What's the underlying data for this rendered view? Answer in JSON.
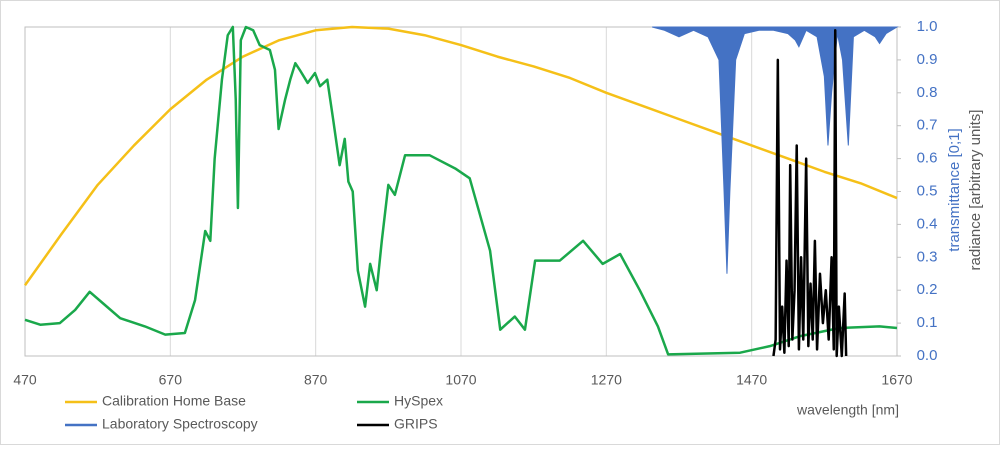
{
  "chart_data": {
    "type": "line",
    "xlabel": "wavelength [nm]",
    "ylabel": "transmittance [0;1]",
    "ylabel2": "radiance [arbitrary units]",
    "xlim": [
      470,
      1670
    ],
    "xticks": [
      470,
      670,
      870,
      1070,
      1270,
      1470,
      1670
    ],
    "ylim": [
      0,
      1
    ],
    "yticks": [
      {
        "value": 0,
        "label": "0.0"
      },
      0.1,
      0.2,
      0.3,
      0.4,
      0.5,
      0.6,
      0.7,
      0.8,
      0.9,
      {
        "value": 1,
        "label": "1.0"
      }
    ],
    "grid": true,
    "series": [
      {
        "name": "Calibration Home Base",
        "color": "#f5c018",
        "x": [
          470,
          520,
          570,
          620,
          670,
          720,
          770,
          820,
          870,
          920,
          970,
          1020,
          1070,
          1120,
          1170,
          1220,
          1270,
          1320,
          1370,
          1420,
          1470,
          1520,
          1570,
          1620,
          1670
        ],
        "values": [
          0.215,
          0.37,
          0.52,
          0.64,
          0.75,
          0.84,
          0.91,
          0.96,
          0.99,
          1.0,
          0.995,
          0.975,
          0.945,
          0.91,
          0.88,
          0.845,
          0.8,
          0.76,
          0.72,
          0.68,
          0.64,
          0.6,
          0.56,
          0.525,
          0.48
        ]
      },
      {
        "name": "HySpex",
        "color": "#1aa84b",
        "x": [
          470,
          491,
          518,
          539,
          559,
          580,
          601,
          635,
          663,
          690,
          704,
          718,
          725,
          731,
          741,
          749,
          756,
          760,
          763,
          767,
          774,
          784,
          793,
          807,
          814,
          819,
          828,
          835,
          842,
          848,
          859,
          869,
          876,
          886,
          894,
          903,
          910,
          915,
          921,
          928,
          938,
          945,
          954,
          961,
          970,
          979,
          993,
          1027,
          1062,
          1082,
          1110,
          1124,
          1144,
          1158,
          1172,
          1206,
          1238,
          1265,
          1289,
          1316,
          1341,
          1355,
          1454,
          1495,
          1536,
          1591,
          1646,
          1670
        ],
        "values": [
          0.11,
          0.095,
          0.1,
          0.14,
          0.195,
          0.155,
          0.115,
          0.09,
          0.065,
          0.07,
          0.17,
          0.38,
          0.35,
          0.6,
          0.84,
          0.975,
          1.0,
          0.78,
          0.45,
          0.96,
          1.0,
          0.99,
          0.945,
          0.93,
          0.87,
          0.69,
          0.78,
          0.84,
          0.89,
          0.87,
          0.83,
          0.86,
          0.82,
          0.84,
          0.72,
          0.58,
          0.66,
          0.53,
          0.5,
          0.26,
          0.15,
          0.28,
          0.2,
          0.35,
          0.52,
          0.49,
          0.61,
          0.61,
          0.57,
          0.54,
          0.32,
          0.08,
          0.12,
          0.08,
          0.29,
          0.29,
          0.35,
          0.28,
          0.31,
          0.2,
          0.09,
          0.005,
          0.01,
          0.03,
          0.06,
          0.085,
          0.09,
          0.085
        ]
      },
      {
        "name": "Laboratory Spectroscopy",
        "color": "#4472c4",
        "area": true,
        "x": [
          1333,
          1350,
          1370,
          1390,
          1410,
          1425,
          1432,
          1436,
          1440,
          1448,
          1460,
          1480,
          1500,
          1520,
          1530,
          1535,
          1545,
          1560,
          1570,
          1575,
          1580,
          1588,
          1595,
          1603,
          1610,
          1625,
          1640,
          1646,
          1655,
          1670
        ],
        "values": [
          1.0,
          0.99,
          0.97,
          0.99,
          0.97,
          0.9,
          0.5,
          0.25,
          0.5,
          0.9,
          0.98,
          0.99,
          0.99,
          0.98,
          0.96,
          0.94,
          0.99,
          0.97,
          0.85,
          0.64,
          0.8,
          0.98,
          0.9,
          0.64,
          0.97,
          0.99,
          0.97,
          0.95,
          0.98,
          1.0
        ]
      },
      {
        "name": "GRIPS",
        "color": "#000000",
        "x": [
          1500,
          1503,
          1506,
          1509,
          1512,
          1515,
          1518,
          1521,
          1523,
          1526,
          1529,
          1532,
          1535,
          1538,
          1541,
          1545,
          1548,
          1551,
          1554,
          1557,
          1560,
          1564,
          1568,
          1572,
          1576,
          1580,
          1583,
          1585,
          1587,
          1590,
          1594,
          1598,
          1600
        ],
        "values": [
          0.0,
          0.05,
          0.9,
          0.02,
          0.15,
          0.01,
          0.29,
          0.03,
          0.58,
          0.05,
          0.2,
          0.64,
          0.02,
          0.3,
          0.05,
          0.6,
          0.03,
          0.22,
          0.05,
          0.35,
          0.02,
          0.25,
          0.1,
          0.2,
          0.05,
          0.3,
          0.02,
          0.99,
          0.0,
          0.15,
          0.0,
          0.19,
          0.0
        ]
      }
    ]
  }
}
